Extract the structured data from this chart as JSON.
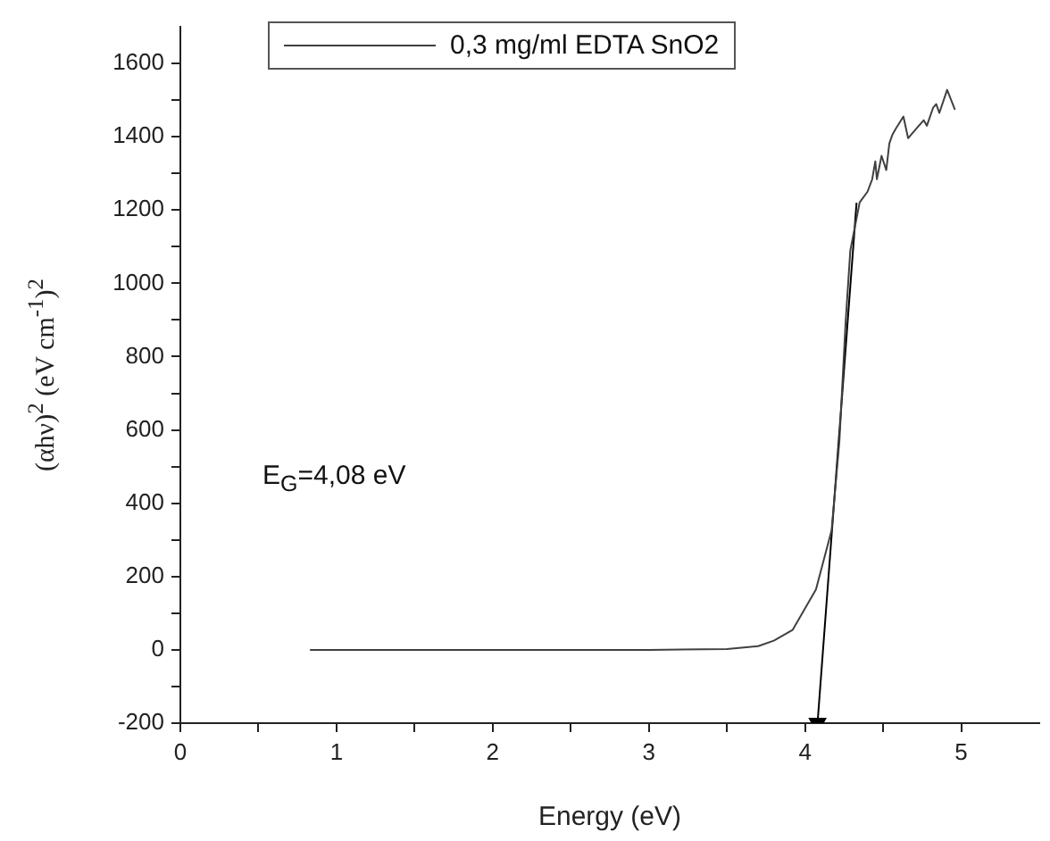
{
  "chart_data": {
    "type": "line",
    "xlabel": "Energy (eV)",
    "ylabel": "(αhν)$^{2}$ (eV cm$^{-1}$)$^{2}$",
    "annotations": [
      "E$_{G}$=4,08 eV"
    ],
    "xlim": [
      0,
      5.5
    ],
    "ylim": [
      -200,
      1700
    ],
    "xticks": [
      0,
      {
        "value": 0.5,
        "label": null
      },
      1,
      {
        "value": 1.5,
        "label": null
      },
      2,
      {
        "value": 2.5,
        "label": null
      },
      3,
      {
        "value": 3.5,
        "label": null
      },
      4,
      {
        "value": 4.5,
        "label": null
      },
      5
    ],
    "yticks": [
      -200,
      {
        "value": -100,
        "label": null
      },
      0,
      {
        "value": 100,
        "label": null
      },
      200,
      {
        "value": 300,
        "label": null
      },
      400,
      {
        "value": 500,
        "label": null
      },
      600,
      {
        "value": 700,
        "label": null
      },
      800,
      {
        "value": 900,
        "label": null
      },
      1000,
      {
        "value": 1100,
        "label": null
      },
      1200,
      {
        "value": 1300,
        "label": null
      },
      1400,
      {
        "value": 1500,
        "label": null
      },
      1600
    ],
    "grid": false,
    "legend": "top left",
    "line_style": "solid",
    "series": [
      {
        "name": "0,3 mg/ml EDTA SnO2",
        "color": "#404040",
        "x": [
          0.83,
          2.0,
          3.0,
          3.5,
          3.7,
          3.8,
          3.92,
          4.07,
          4.17,
          4.22,
          4.26,
          4.29,
          4.35,
          4.4,
          4.43,
          4.45,
          4.46,
          4.49,
          4.52,
          4.54,
          4.56,
          4.58,
          4.63,
          4.66,
          4.71,
          4.76,
          4.78,
          4.82,
          4.84,
          4.86,
          4.91,
          4.96
        ],
        "values": [
          0,
          0,
          0,
          2,
          10,
          25,
          54,
          165,
          326,
          569,
          895,
          1090,
          1221,
          1250,
          1284,
          1333,
          1284,
          1348,
          1309,
          1382,
          1406,
          1421,
          1455,
          1396,
          1421,
          1445,
          1430,
          1479,
          1489,
          1465,
          1528,
          1474
        ]
      },
      {
        "type": "line",
        "color": "#000000",
        "marker": "triangle",
        "x": [
          4.08,
          4.33
        ],
        "values": [
          -200,
          1220
        ]
      }
    ]
  }
}
